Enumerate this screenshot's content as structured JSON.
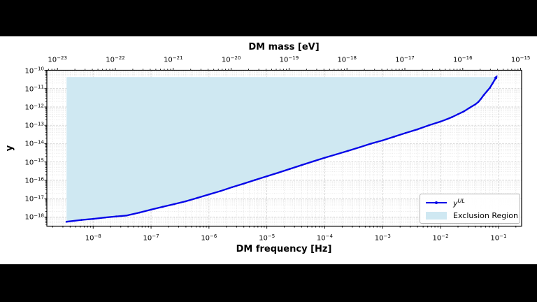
{
  "figure": {
    "outer_background": "#000000",
    "figure_background": "#ffffff",
    "axes_edge_color": "#000000",
    "grid_major_color": "#c3c3c3",
    "grid_minor_color": "#dadada"
  },
  "chart_data": {
    "type": "line",
    "top_axis_title": "DM mass [eV]",
    "xlabel": "DM frequency [Hz]",
    "ylabel": "y",
    "x_scale": "log",
    "y_scale": "log",
    "xlim_log10": [
      -8.8,
      -0.6
    ],
    "ylim_log10": [
      -18.5,
      -10
    ],
    "x_tick_exponents": [
      -8,
      -7,
      -6,
      -5,
      -4,
      -3,
      -2,
      -1
    ],
    "y_tick_exponents": [
      -10,
      -11,
      -12,
      -13,
      -14,
      -15,
      -16,
      -17,
      -18
    ],
    "mass_tick_exponents": [
      -23,
      -22,
      -21,
      -20,
      -19,
      -18,
      -17,
      -16,
      -15
    ],
    "mass_eV_per_Hz": 4.136e-15,
    "grid": true,
    "legend_position": "lower right",
    "series": [
      {
        "name": "y_UL_upper_limit",
        "color": "#0404e8",
        "marker": "point",
        "points": [
          [
            3.47e-09,
            5.5e-19
          ],
          [
            6.3e-09,
            6.9e-19
          ],
          [
            1e-08,
            7.9e-19
          ],
          [
            1.58e-08,
            9.3e-19
          ],
          [
            2.5e-08,
            1.07e-18
          ],
          [
            3.8e-08,
            1.2e-18
          ],
          [
            6.3e-08,
            1.74e-18
          ],
          [
            1e-07,
            2.5e-18
          ],
          [
            1.58e-07,
            3.55e-18
          ],
          [
            2.5e-07,
            5e-18
          ],
          [
            4e-07,
            7.2e-18
          ],
          [
            6.3e-07,
            1.1e-17
          ],
          [
            1e-06,
            1.7e-17
          ],
          [
            1.58e-06,
            2.6e-17
          ],
          [
            2.5e-06,
            4.2e-17
          ],
          [
            4e-06,
            6.6e-17
          ],
          [
            6.3e-06,
            1.05e-16
          ],
          [
            1e-05,
            1.66e-16
          ],
          [
            1.58e-05,
            2.6e-16
          ],
          [
            2.5e-05,
            4.2e-16
          ],
          [
            4e-05,
            6.8e-16
          ],
          [
            6.3e-05,
            1.07e-15
          ],
          [
            0.0001,
            1.7e-15
          ],
          [
            0.000158,
            2.6e-15
          ],
          [
            0.00025,
            4e-15
          ],
          [
            0.0004,
            6.3e-15
          ],
          [
            0.00063,
            1e-14
          ],
          [
            0.001,
            1.5e-14
          ],
          [
            0.00158,
            2.4e-14
          ],
          [
            0.0025,
            3.8e-14
          ],
          [
            0.004,
            6e-14
          ],
          [
            0.0063,
            1e-13
          ],
          [
            0.01,
            1.6e-13
          ],
          [
            0.0126,
            2.1e-13
          ],
          [
            0.0158,
            2.8e-13
          ],
          [
            0.02,
            4e-13
          ],
          [
            0.025,
            5.6e-13
          ],
          [
            0.0316,
            8.9e-13
          ],
          [
            0.04,
            1.38e-12
          ],
          [
            0.045,
            1.9e-12
          ],
          [
            0.05,
            2.8e-12
          ],
          [
            0.056,
            4.5e-12
          ],
          [
            0.063,
            7.1e-12
          ],
          [
            0.071,
            1.1e-11
          ],
          [
            0.079,
            1.9e-11
          ],
          [
            0.085,
            2.8e-11
          ],
          [
            0.092,
            4.3e-11
          ]
        ]
      }
    ],
    "exclusion_region": {
      "label": "Exclusion Region",
      "fill_color": "#cfe8f2",
      "cap_y": 4.3e-11,
      "extent": "above upper-limit curve from first to last data point"
    },
    "legend": {
      "series_label_base": "y",
      "series_label_sup": "UL",
      "region_label": "Exclusion Region"
    }
  }
}
